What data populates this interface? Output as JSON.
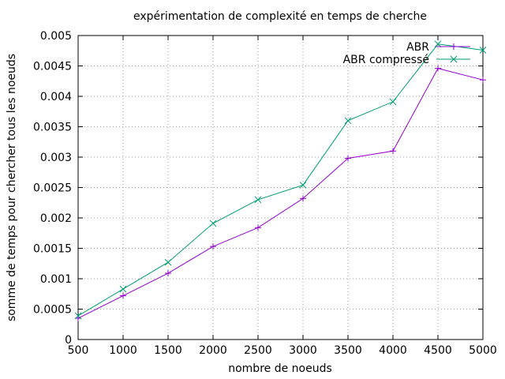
{
  "chart_data": {
    "type": "line",
    "title": "expérimentation de complexité en temps de cherche",
    "xlabel": "nombre de noeuds",
    "ylabel": "somme de temps pour chercher tous les noeuds",
    "xlim": [
      500,
      5000
    ],
    "ylim": [
      0,
      0.005
    ],
    "x_ticks": [
      500,
      1000,
      1500,
      2000,
      2500,
      3000,
      3500,
      4000,
      4500,
      5000
    ],
    "x_tick_labels": [
      "500",
      "1000",
      "1500",
      "2000",
      "2500",
      "3000",
      "3500",
      "4000",
      "4500",
      "5000"
    ],
    "y_ticks": [
      0,
      0.0005,
      0.001,
      0.0015,
      0.002,
      0.0025,
      0.003,
      0.0035,
      0.004,
      0.0045,
      0.005
    ],
    "y_tick_labels": [
      "0",
      "0.0005",
      "0.001",
      "0.0015",
      "0.002",
      "0.0025",
      "0.003",
      "0.0035",
      "0.004",
      "0.0045",
      "0.005"
    ],
    "grid": true,
    "legend_position": "top-right",
    "x": [
      500,
      1000,
      1500,
      2000,
      2500,
      3000,
      3500,
      4000,
      4500,
      5000
    ],
    "series": [
      {
        "name": "ABR",
        "color": "#9400d3",
        "marker": "plus",
        "values": [
          0.00035,
          0.00072,
          0.00109,
          0.00153,
          0.00184,
          0.00232,
          0.00298,
          0.0031,
          0.00446,
          0.00427
        ]
      },
      {
        "name": "ABR compressé",
        "color": "#009e73",
        "marker": "cross",
        "values": [
          0.00039,
          0.00083,
          0.00127,
          0.00191,
          0.0023,
          0.00254,
          0.0036,
          0.00391,
          0.00486,
          0.00476
        ]
      }
    ]
  }
}
